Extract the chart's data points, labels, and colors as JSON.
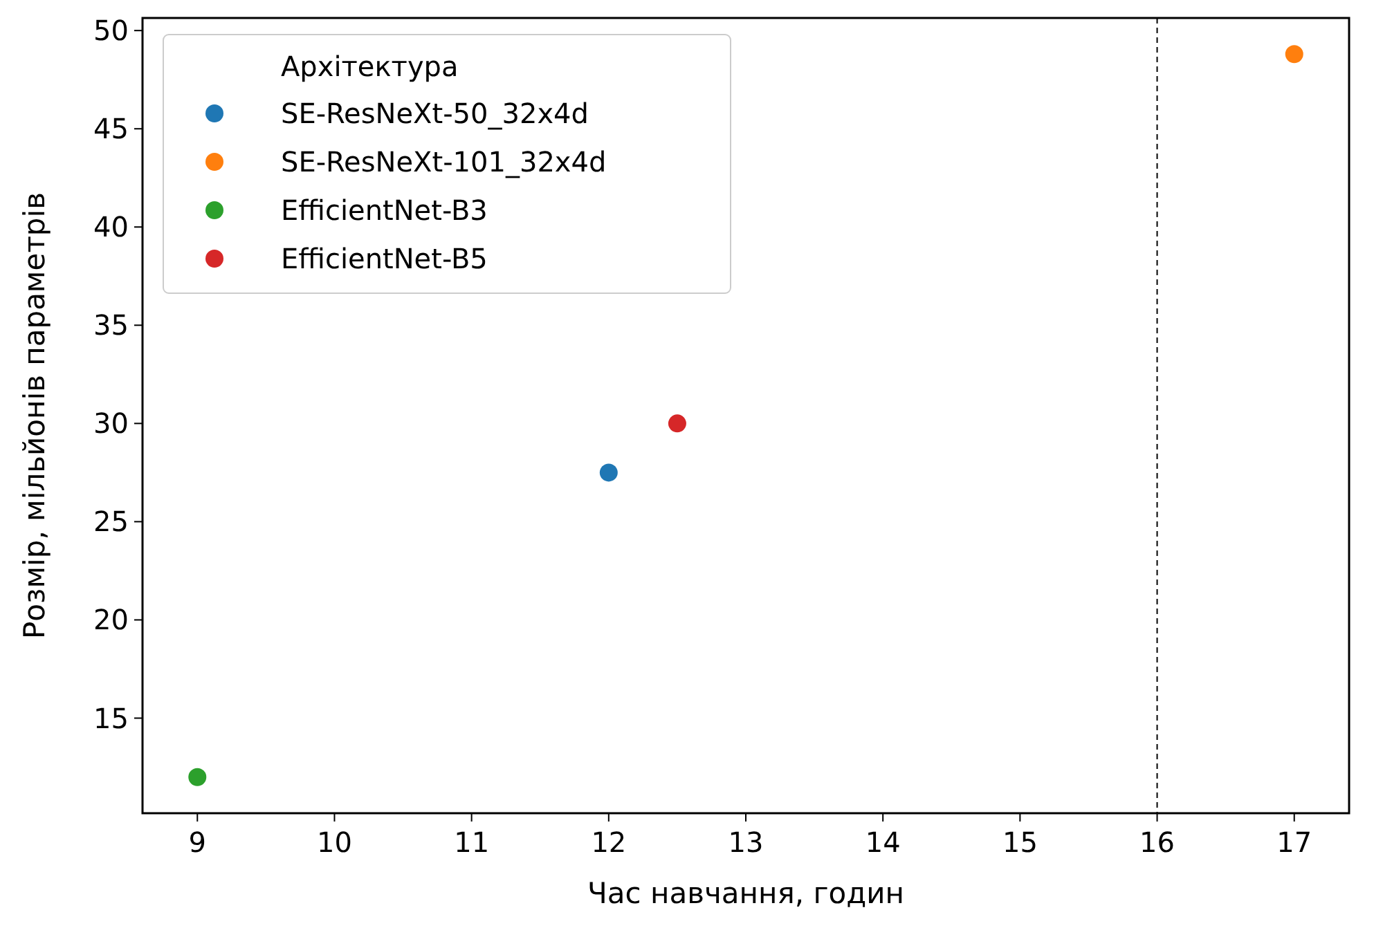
{
  "chart_data": {
    "type": "scatter",
    "xlabel": "Час навчання, годин",
    "ylabel": "Розмір, мільйонів параметрів",
    "legend_title": "Архітектура",
    "legend": "top left",
    "grid": false,
    "marker": "circle",
    "xlim": [
      8.6,
      17.4
    ],
    "xticks": [
      9,
      10,
      11,
      12,
      13,
      14,
      15,
      16,
      17
    ],
    "ylim": [
      10.16,
      50.64
    ],
    "yticks": [
      15,
      20,
      25,
      30,
      35,
      40,
      45,
      50
    ],
    "ref_lines": [
      {
        "axis": "x",
        "value": 16,
        "color": "#000000",
        "line_style": "dashed"
      }
    ],
    "series": [
      {
        "name": "SE-ResNeXt-50_32x4d",
        "color": "#1f77b4",
        "x": [
          12
        ],
        "values": [
          27.5
        ]
      },
      {
        "name": "SE-ResNeXt-101_32x4d",
        "color": "#ff7f0e",
        "x": [
          17
        ],
        "values": [
          48.8
        ]
      },
      {
        "name": "EfficientNet-B3",
        "color": "#2ca02c",
        "x": [
          9
        ],
        "values": [
          12
        ]
      },
      {
        "name": "EfficientNet-B5",
        "color": "#d62728",
        "x": [
          12.5
        ],
        "values": [
          30
        ]
      }
    ]
  }
}
